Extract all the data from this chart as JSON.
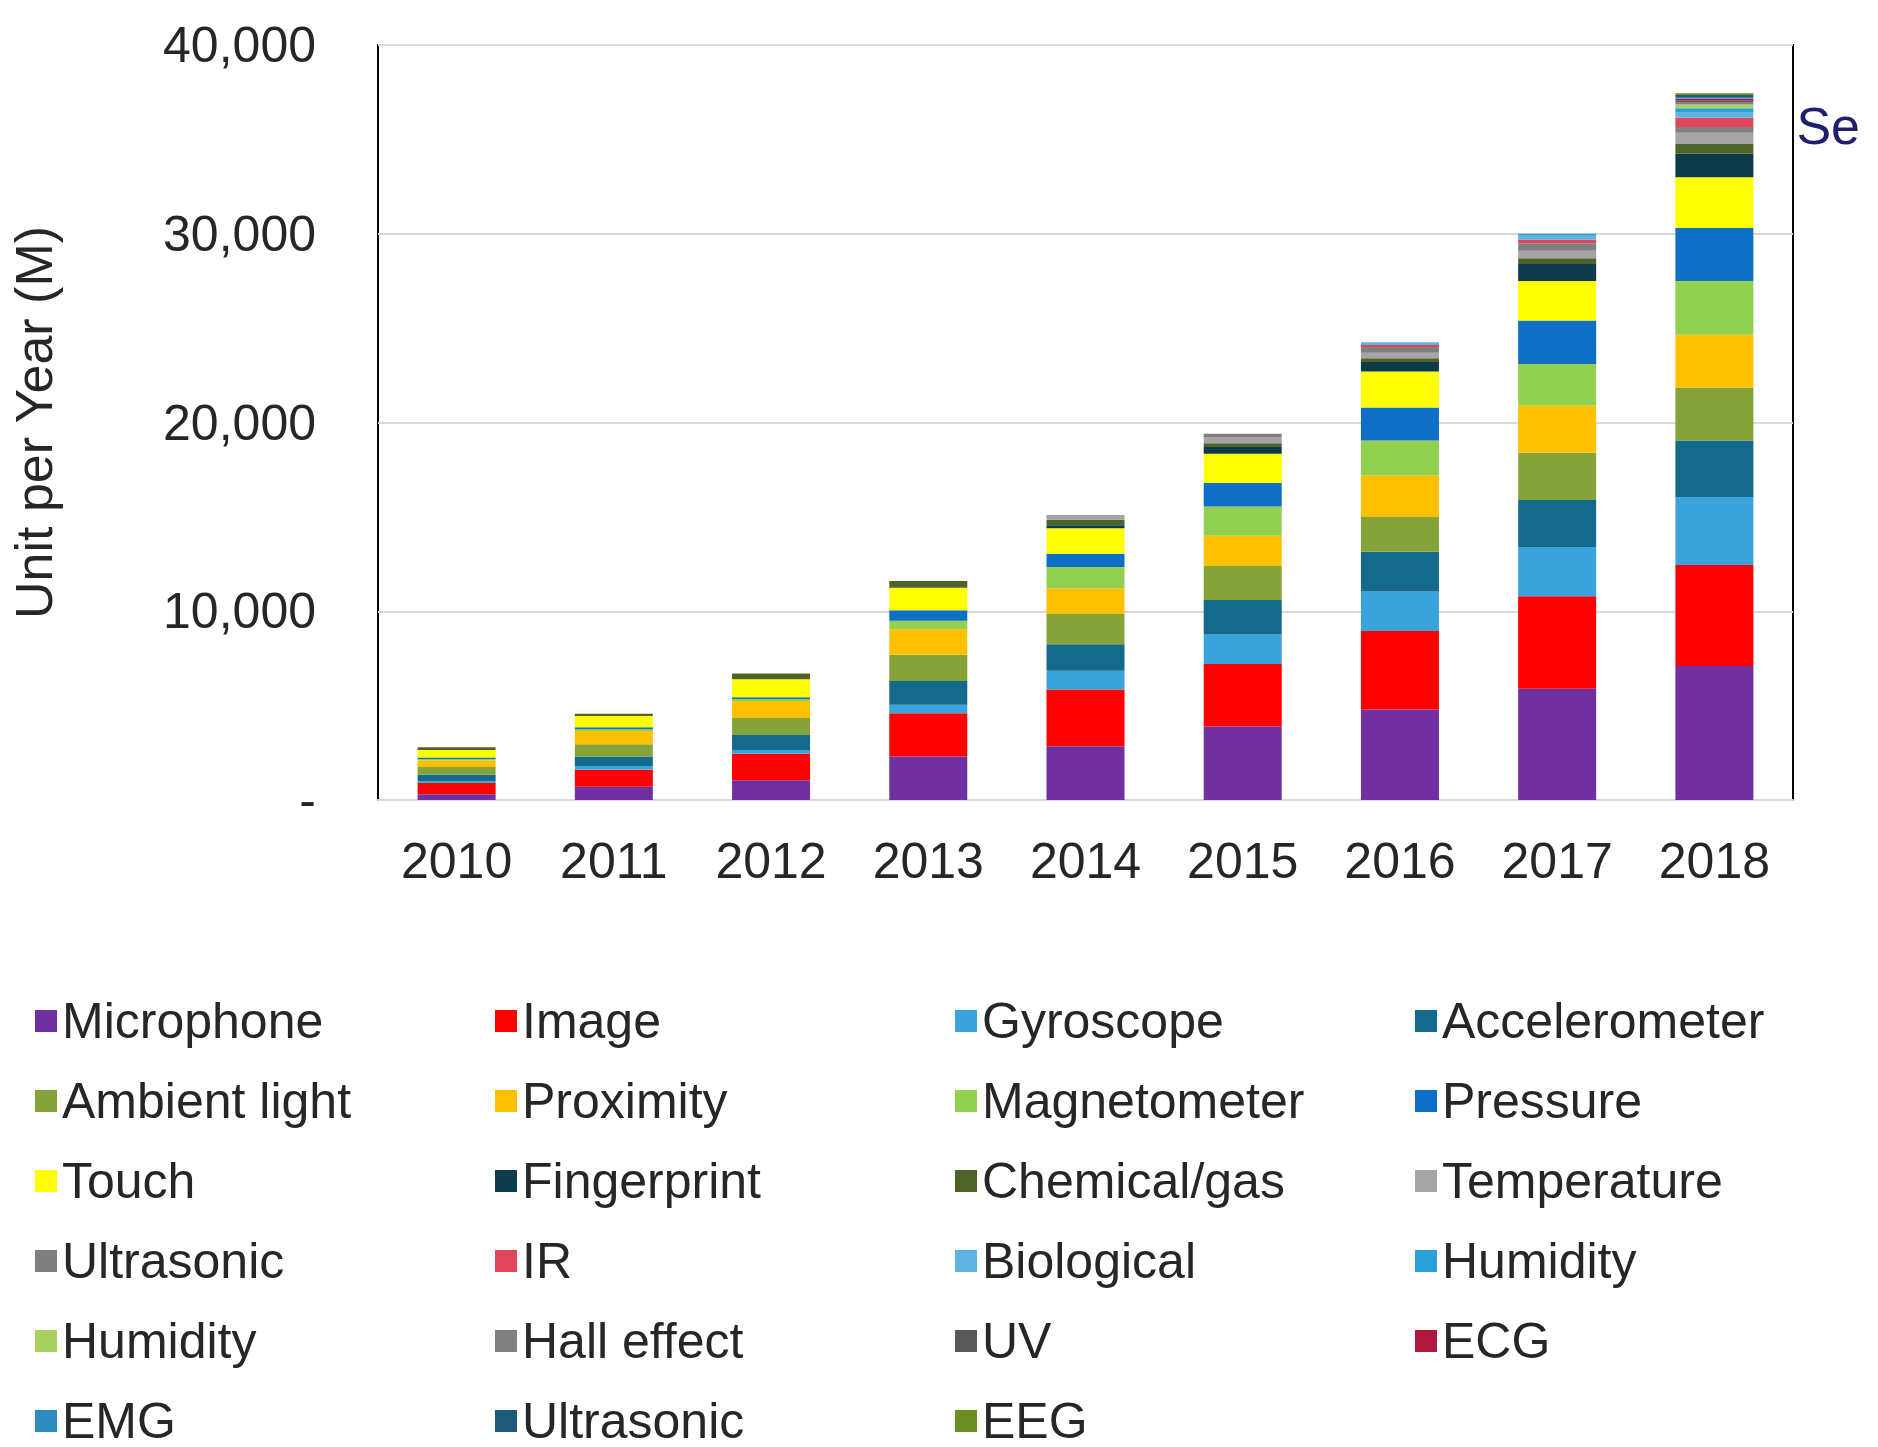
{
  "chart_data": {
    "type": "bar",
    "stacked": true,
    "ylabel": "Unit per Year (M)",
    "categories": [
      "2010",
      "2011",
      "2012",
      "2013",
      "2014",
      "2015",
      "2016",
      "2017",
      "2018"
    ],
    "ylim": [
      0,
      40000
    ],
    "yticks": [
      {
        "value": 0,
        "label": "-"
      },
      {
        "value": 10000,
        "label": "10,000"
      },
      {
        "value": 20000,
        "label": "20,000"
      },
      {
        "value": 30000,
        "label": "30,000"
      },
      {
        "value": 40000,
        "label": "40,000"
      }
    ],
    "grid": "y",
    "legend": "bottom",
    "annotations": [
      "Se"
    ],
    "series": [
      {
        "name": "Microphone",
        "color": "#7030a0",
        "values": [
          300,
          700,
          1050,
          2300,
          2850,
          3900,
          4800,
          5900,
          7100
        ]
      },
      {
        "name": "Image",
        "color": "#ff0000",
        "values": [
          600,
          900,
          1400,
          2300,
          3000,
          3300,
          4150,
          4900,
          5350
        ]
      },
      {
        "name": "Gyroscope",
        "color": "#3aa3db",
        "values": [
          100,
          200,
          200,
          450,
          1000,
          1600,
          2100,
          2600,
          3600
        ]
      },
      {
        "name": "Accelerometer",
        "color": "#136a8a",
        "values": [
          350,
          500,
          800,
          1250,
          1400,
          1800,
          2100,
          2500,
          3000
        ]
      },
      {
        "name": "Ambient light",
        "color": "#86a33a",
        "values": [
          400,
          650,
          900,
          1400,
          1600,
          1800,
          1850,
          2500,
          2800
        ]
      },
      {
        "name": "Proximity",
        "color": "#ffc000",
        "values": [
          350,
          700,
          900,
          1350,
          1350,
          1600,
          2200,
          2500,
          2800
        ]
      },
      {
        "name": "Magnetometer",
        "color": "#92d050",
        "values": [
          70,
          100,
          100,
          450,
          1150,
          1550,
          1850,
          2200,
          2850
        ]
      },
      {
        "name": "Pressure",
        "color": "#0f6fc6",
        "values": [
          80,
          100,
          100,
          550,
          700,
          1250,
          1750,
          2300,
          2800
        ]
      },
      {
        "name": "Touch",
        "color": "#ffff00",
        "values": [
          400,
          600,
          950,
          1200,
          1350,
          1550,
          1900,
          2100,
          2700
        ]
      },
      {
        "name": "Fingerprint",
        "color": "#0d3b4a",
        "values": [
          0,
          0,
          0,
          0,
          150,
          350,
          500,
          900,
          1250
        ]
      },
      {
        "name": "Chemical/gas",
        "color": "#4f6228",
        "values": [
          150,
          120,
          300,
          350,
          300,
          200,
          200,
          300,
          500
        ]
      },
      {
        "name": "Temperature",
        "color": "#a5a5a5",
        "values": [
          0,
          0,
          0,
          0,
          250,
          300,
          300,
          400,
          600
        ]
      },
      {
        "name": "Ultrasonic",
        "color": "#7f7f7f",
        "values": [
          0,
          0,
          0,
          0,
          0,
          200,
          300,
          400,
          300
        ]
      },
      {
        "name": "IR",
        "color": "#e0465a",
        "values": [
          0,
          0,
          0,
          0,
          0,
          0,
          100,
          200,
          500
        ]
      },
      {
        "name": "Biological",
        "color": "#5fb3e0",
        "values": [
          0,
          0,
          0,
          0,
          0,
          0,
          150,
          200,
          300
        ]
      },
      {
        "name": "Humidity",
        "color": "#2aa0d8",
        "values": [
          0,
          0,
          0,
          0,
          0,
          0,
          0,
          100,
          200
        ]
      },
      {
        "name": "Humidity",
        "color": "#a9d160",
        "values": [
          0,
          0,
          0,
          0,
          0,
          0,
          0,
          0,
          200
        ]
      },
      {
        "name": "Hall effect",
        "color": "#808080",
        "values": [
          0,
          0,
          0,
          0,
          0,
          0,
          0,
          0,
          100
        ]
      },
      {
        "name": "UV",
        "color": "#595959",
        "values": [
          0,
          0,
          0,
          0,
          0,
          0,
          0,
          0,
          100
        ]
      },
      {
        "name": "ECG",
        "color": "#b0183d",
        "values": [
          0,
          0,
          0,
          0,
          0,
          0,
          0,
          0,
          100
        ]
      },
      {
        "name": "EMG",
        "color": "#2e8bc0",
        "values": [
          0,
          0,
          0,
          0,
          0,
          0,
          0,
          0,
          100
        ]
      },
      {
        "name": "Ultrasonic",
        "color": "#1f5a7a",
        "values": [
          0,
          0,
          0,
          0,
          0,
          0,
          0,
          0,
          100
        ]
      },
      {
        "name": "EEG",
        "color": "#6b8e23",
        "values": [
          0,
          0,
          0,
          0,
          0,
          0,
          0,
          0,
          100
        ]
      }
    ]
  }
}
